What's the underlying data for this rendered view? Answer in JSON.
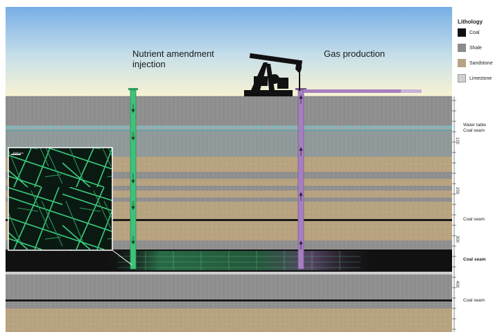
{
  "wells": {
    "injection_title": "Nutrient amendment\ninjection",
    "production_title": "Gas production"
  },
  "legend": {
    "title": "Lithology",
    "items": [
      {
        "label": "Coal",
        "color": "#111111"
      },
      {
        "label": "Shale",
        "color": "#8b8b8b"
      },
      {
        "label": "Sandstone",
        "color": "#b8a283"
      },
      {
        "label": "Limestone",
        "color": "#cfcfcf"
      }
    ]
  },
  "annotations": {
    "water_table": "Water table",
    "coal_seam_1": "Coal seam",
    "coal_seam_2": "Coal seam",
    "coal_seam_3": "Coal seam",
    "coal_seam_4": "Coal seam"
  },
  "depth_scale": {
    "ticks": [
      "100",
      "200",
      "300",
      "400"
    ]
  },
  "inset": {
    "scale_bar": "1000 μm"
  },
  "colors": {
    "sky_top": "#7fb4e8",
    "sky_bottom": "#f6f2d6",
    "shale": "#8c8c8c",
    "sandstone": "#b9a482",
    "coal": "#111111",
    "limestone": "#cfcfcf",
    "injection_pipe": "#3ec27a",
    "production_pipe": "#a57fc0",
    "water_table": "#59c8cf"
  }
}
